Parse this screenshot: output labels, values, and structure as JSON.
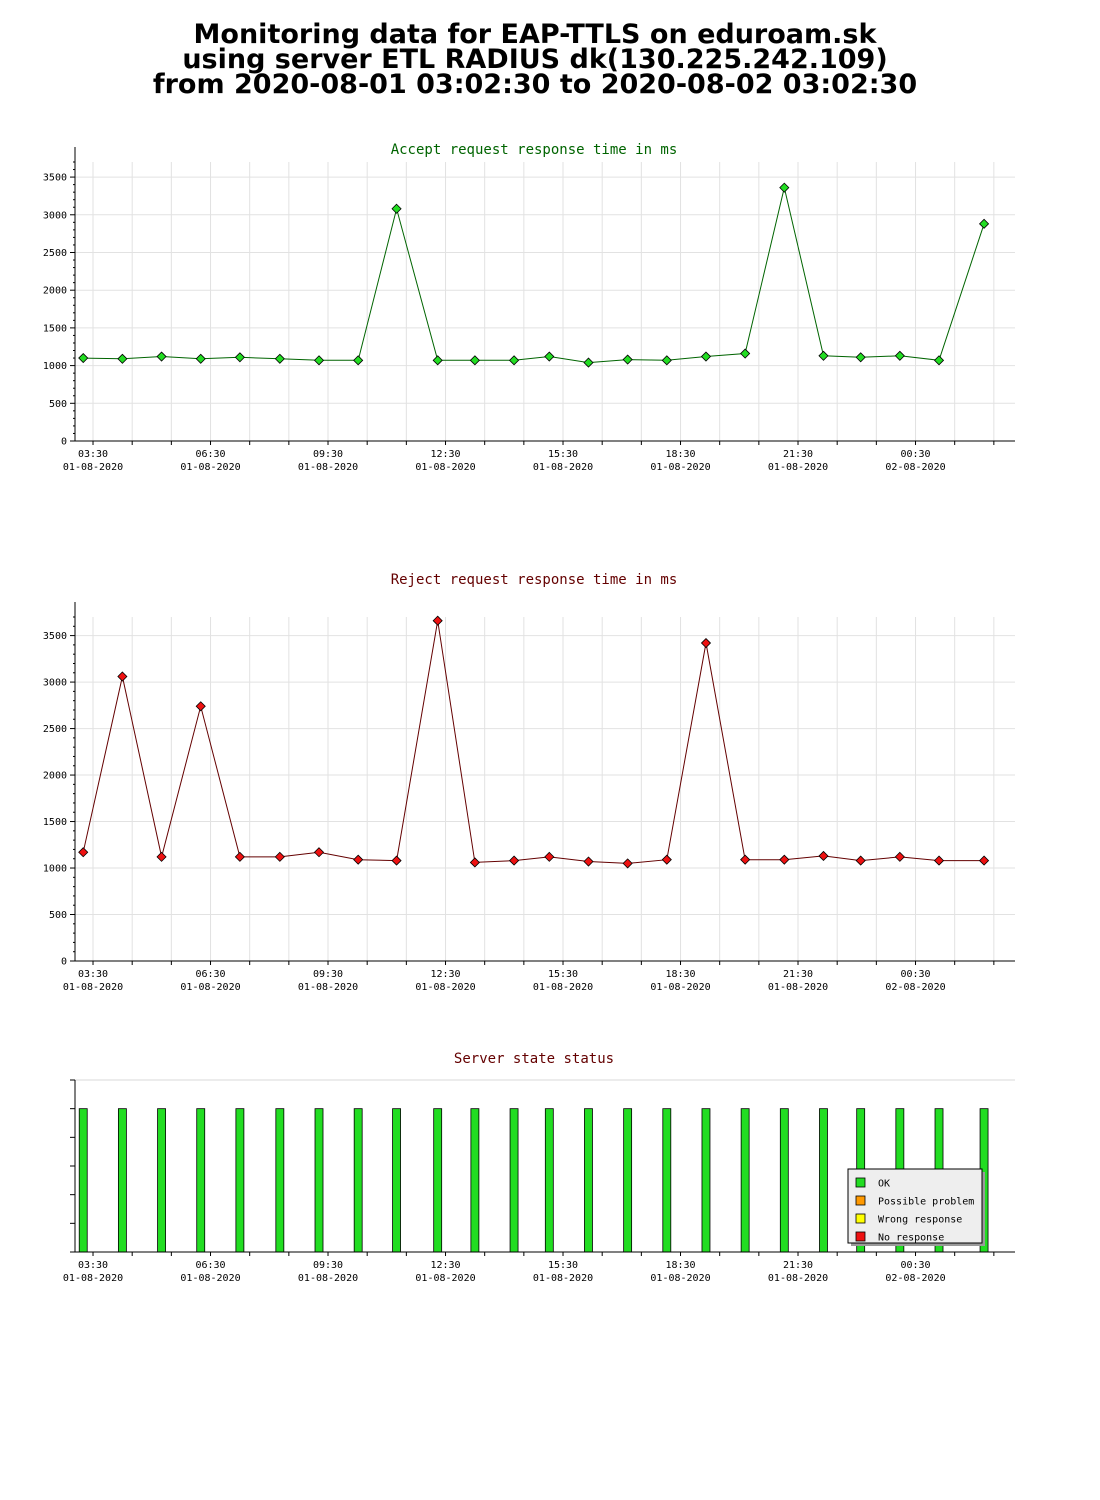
{
  "page": {
    "title_lines": [
      "Monitoring data for EAP-TTLS on eduroam.sk",
      "using server ETL RADIUS dk(130.225.242.109)",
      "from 2020-08-01 03:02:30 to 2020-08-02 03:02:30"
    ]
  },
  "chart_data": [
    {
      "type": "line",
      "title": "Accept request response time in ms",
      "title_color": "#006400",
      "line_color": "#006400",
      "marker_color": "#22dd22",
      "ylim": [
        0,
        3700
      ],
      "yticks": [
        0,
        500,
        1000,
        1500,
        2000,
        2500,
        3000,
        3500
      ],
      "xlim_hours": [
        3.04,
        27.04
      ],
      "x_ticks": [
        {
          "hour": 3.5,
          "time": "03:30",
          "date": "01-08-2020"
        },
        {
          "hour": 6.5,
          "time": "06:30",
          "date": "01-08-2020"
        },
        {
          "hour": 9.5,
          "time": "09:30",
          "date": "01-08-2020"
        },
        {
          "hour": 12.5,
          "time": "12:30",
          "date": "01-08-2020"
        },
        {
          "hour": 15.5,
          "time": "15:30",
          "date": "01-08-2020"
        },
        {
          "hour": 18.5,
          "time": "18:30",
          "date": "01-08-2020"
        },
        {
          "hour": 21.5,
          "time": "21:30",
          "date": "01-08-2020"
        },
        {
          "hour": 24.5,
          "time": "00:30",
          "date": "02-08-2020"
        }
      ],
      "x_hours": [
        3.25,
        4.25,
        5.25,
        6.25,
        7.25,
        8.27,
        9.27,
        10.27,
        11.25,
        12.3,
        13.25,
        14.25,
        15.15,
        16.15,
        17.15,
        18.15,
        19.15,
        20.15,
        21.15,
        22.15,
        23.1,
        24.1,
        25.1,
        26.25
      ],
      "values": [
        1100,
        1090,
        1120,
        1090,
        1110,
        1090,
        1070,
        1070,
        3080,
        1070,
        1070,
        1070,
        1120,
        1040,
        1080,
        1070,
        1120,
        1160,
        3360,
        1130,
        1110,
        1130,
        1070,
        2880
      ]
    },
    {
      "type": "line",
      "title": "Reject request response time in ms",
      "title_color": "#640000",
      "line_color": "#640000",
      "marker_color": "#ee1111",
      "ylim": [
        0,
        3700
      ],
      "yticks": [
        0,
        500,
        1000,
        1500,
        2000,
        2500,
        3000,
        3500
      ],
      "xlim_hours": [
        3.04,
        27.04
      ],
      "x_ticks": [
        {
          "hour": 3.5,
          "time": "03:30",
          "date": "01-08-2020"
        },
        {
          "hour": 6.5,
          "time": "06:30",
          "date": "01-08-2020"
        },
        {
          "hour": 9.5,
          "time": "09:30",
          "date": "01-08-2020"
        },
        {
          "hour": 12.5,
          "time": "12:30",
          "date": "01-08-2020"
        },
        {
          "hour": 15.5,
          "time": "15:30",
          "date": "01-08-2020"
        },
        {
          "hour": 18.5,
          "time": "18:30",
          "date": "01-08-2020"
        },
        {
          "hour": 21.5,
          "time": "21:30",
          "date": "01-08-2020"
        },
        {
          "hour": 24.5,
          "time": "00:30",
          "date": "02-08-2020"
        }
      ],
      "x_hours": [
        3.25,
        4.25,
        5.25,
        6.25,
        7.25,
        8.27,
        9.27,
        10.27,
        11.25,
        12.3,
        13.25,
        14.25,
        15.15,
        16.15,
        17.15,
        18.15,
        19.15,
        20.15,
        21.15,
        22.15,
        23.1,
        24.1,
        25.1,
        26.25
      ],
      "values": [
        1170,
        3060,
        1120,
        2740,
        1120,
        1120,
        1170,
        1090,
        1080,
        3660,
        1060,
        1080,
        1120,
        1070,
        1050,
        1090,
        3420,
        1090,
        1090,
        1130,
        1080,
        1120,
        1080,
        1080
      ]
    },
    {
      "type": "bar",
      "title": "Server state status",
      "title_color": "#640000",
      "bar_color": "#22dd22",
      "xlim_hours": [
        3.04,
        27.04
      ],
      "x_ticks": [
        {
          "hour": 3.5,
          "time": "03:30",
          "date": "01-08-2020"
        },
        {
          "hour": 6.5,
          "time": "06:30",
          "date": "01-08-2020"
        },
        {
          "hour": 9.5,
          "time": "09:30",
          "date": "01-08-2020"
        },
        {
          "hour": 12.5,
          "time": "12:30",
          "date": "01-08-2020"
        },
        {
          "hour": 15.5,
          "time": "15:30",
          "date": "01-08-2020"
        },
        {
          "hour": 18.5,
          "time": "18:30",
          "date": "01-08-2020"
        },
        {
          "hour": 21.5,
          "time": "21:30",
          "date": "01-08-2020"
        },
        {
          "hour": 24.5,
          "time": "00:30",
          "date": "02-08-2020"
        }
      ],
      "x_hours": [
        3.25,
        4.25,
        5.25,
        6.25,
        7.25,
        8.27,
        9.27,
        10.27,
        11.25,
        12.3,
        13.25,
        14.25,
        15.15,
        16.15,
        17.15,
        18.15,
        19.15,
        20.15,
        21.15,
        22.15,
        23.1,
        24.1,
        25.1,
        26.25
      ],
      "status": [
        "OK",
        "OK",
        "OK",
        "OK",
        "OK",
        "OK",
        "OK",
        "OK",
        "OK",
        "OK",
        "OK",
        "OK",
        "OK",
        "OK",
        "OK",
        "OK",
        "OK",
        "OK",
        "OK",
        "OK",
        "OK",
        "OK",
        "OK",
        "OK"
      ],
      "legend": [
        {
          "label": "OK",
          "color": "#22dd22"
        },
        {
          "label": "Possible problem",
          "color": "#ff9900"
        },
        {
          "label": "Wrong response",
          "color": "#ffff00"
        },
        {
          "label": "No response",
          "color": "#ee1111"
        }
      ]
    }
  ]
}
